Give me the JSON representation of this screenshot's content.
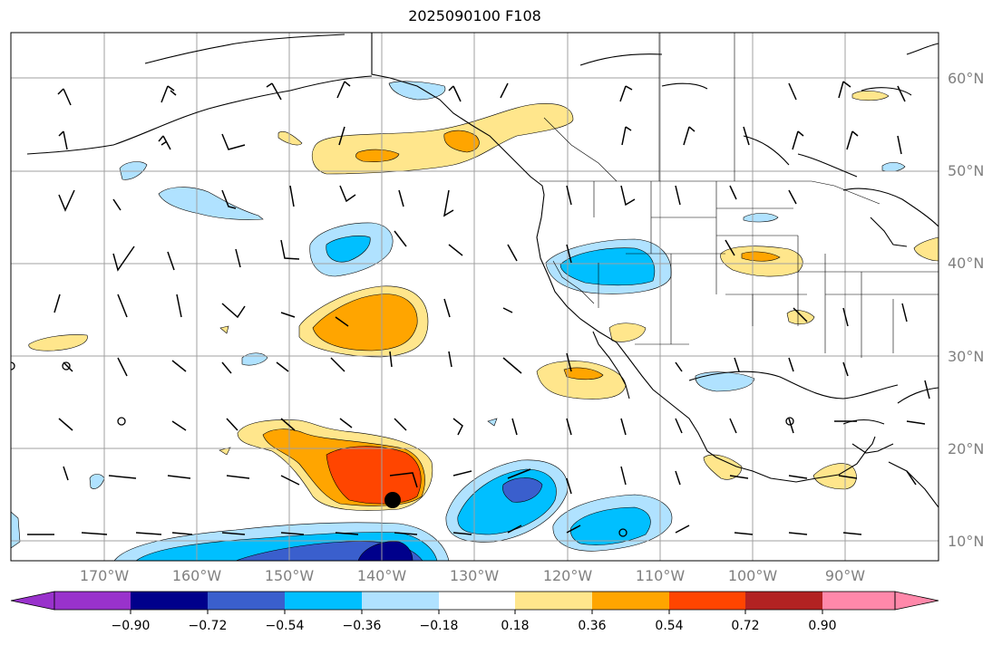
{
  "title": "2025090100 F108",
  "lat_labels": [
    "60°N",
    "50°N",
    "40°N",
    "30°N",
    "20°N",
    "10°N"
  ],
  "lon_labels": [
    "170°W",
    "160°W",
    "150°W",
    "140°W",
    "130°W",
    "120°W",
    "110°W",
    "100°W",
    "90°W"
  ],
  "colorbar": {
    "tick_labels": [
      "−0.90",
      "−0.72",
      "−0.54",
      "−0.36",
      "−0.18",
      "0.18",
      "0.36",
      "0.54",
      "0.72",
      "0.90"
    ],
    "colors": [
      "#9932cc",
      "#00008b",
      "#3a5fcd",
      "#00bfff",
      "#b0e2ff",
      "#ffffff",
      "#ffe68c",
      "#ffa500",
      "#ff4500",
      "#b22222",
      "#ff88aa"
    ]
  },
  "map": {
    "projection": "PlateCarree",
    "lon_range": [
      -180,
      -80
    ],
    "lat_range": [
      8,
      65
    ],
    "gridlines": true,
    "gridline_color": "#a0a0a0"
  }
}
